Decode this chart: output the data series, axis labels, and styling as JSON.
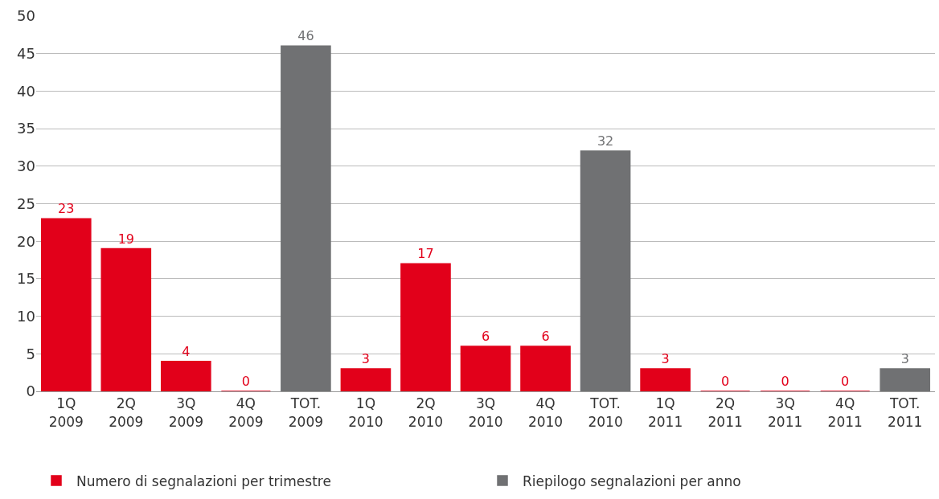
{
  "chart_data": {
    "type": "bar",
    "categories": [
      "1Q\n2009",
      "2Q\n2009",
      "3Q\n2009",
      "4Q\n2009",
      "TOT.\n2009",
      "1Q\n2010",
      "2Q\n2010",
      "3Q\n2010",
      "4Q\n2010",
      "TOT.\n2010",
      "1Q\n2011",
      "2Q\n2011",
      "3Q\n2011",
      "4Q\n2011",
      "TOT.\n2011"
    ],
    "series": [
      {
        "name": "Numero di segnalazioni per trimestre",
        "color": "#e2001a",
        "values": [
          23,
          19,
          4,
          0,
          null,
          3,
          17,
          6,
          6,
          null,
          3,
          0,
          0,
          0,
          null
        ]
      },
      {
        "name": "Riepilogo segnalazioni per anno",
        "color": "#707173",
        "values": [
          null,
          null,
          null,
          null,
          46,
          null,
          null,
          null,
          null,
          32,
          null,
          null,
          null,
          null,
          3
        ]
      }
    ],
    "ylim": [
      0,
      50
    ],
    "yticks": [
      0,
      5,
      10,
      15,
      20,
      25,
      30,
      35,
      40,
      45,
      50
    ],
    "grid": "y",
    "legend": "bottom left",
    "data_labels": true
  }
}
